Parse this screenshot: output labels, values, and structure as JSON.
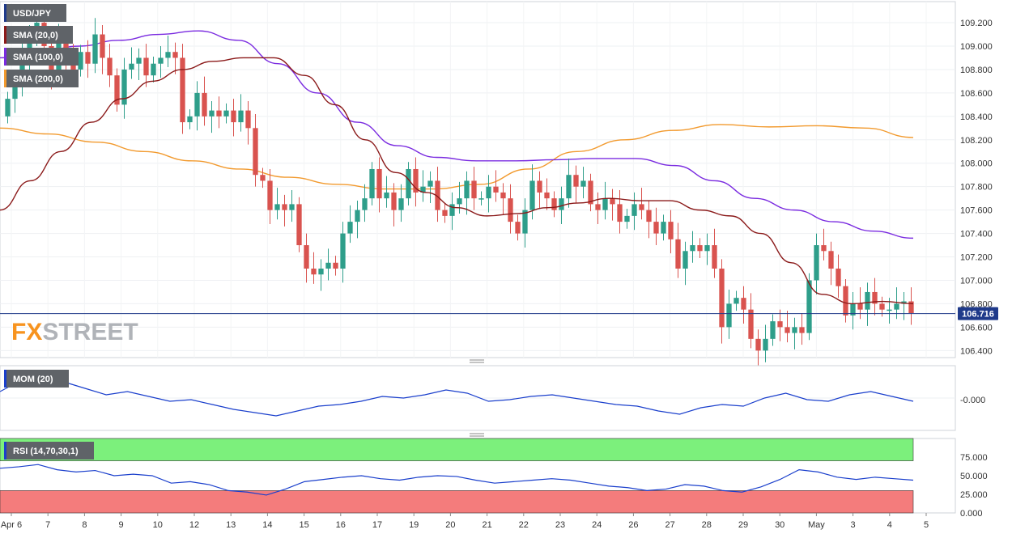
{
  "chart_data": [
    {
      "type": "candlestick",
      "symbol": "USD/JPY",
      "price_axis": {
        "ticks": [
          "106.400",
          "106.600",
          "106.800",
          "107.000",
          "107.200",
          "107.400",
          "107.600",
          "107.800",
          "108.000",
          "108.200",
          "108.400",
          "108.600",
          "108.800",
          "109.000",
          "109.200"
        ],
        "ylim": [
          106.34,
          109.38
        ]
      },
      "current_price": {
        "value": 106.716,
        "label": "106.716"
      },
      "x_axis": {
        "ticks": [
          "Apr 6",
          "7",
          "8",
          "9",
          "10",
          "12",
          "13",
          "14",
          "15",
          "16",
          "17",
          "19",
          "20",
          "21",
          "22",
          "23",
          "24",
          "26",
          "27",
          "28",
          "29",
          "30",
          "May",
          "3",
          "4",
          "5"
        ]
      },
      "indicators": [
        {
          "name": "SMA (20,0)",
          "color": "#8b1a1a"
        },
        {
          "name": "SMA (100,0)",
          "color": "#7a2be0"
        },
        {
          "name": "SMA (200,0)",
          "color": "#f29a2e"
        }
      ],
      "candles": [
        [
          108.4,
          108.55
        ],
        [
          108.55,
          108.65
        ],
        [
          108.65,
          108.9
        ],
        [
          108.9,
          109.1
        ],
        [
          109.1,
          109.2
        ],
        [
          109.2,
          109.0
        ],
        [
          109.0,
          108.75
        ],
        [
          108.75,
          109.05
        ],
        [
          109.05,
          108.9
        ],
        [
          108.9,
          108.8
        ],
        [
          108.8,
          108.95
        ],
        [
          108.95,
          108.85
        ],
        [
          108.85,
          109.1
        ],
        [
          109.1,
          108.9
        ],
        [
          108.9,
          108.75
        ],
        [
          108.75,
          108.5
        ],
        [
          108.5,
          108.8
        ],
        [
          108.8,
          108.85
        ],
        [
          108.85,
          108.9
        ],
        [
          108.9,
          108.75
        ],
        [
          108.75,
          108.85
        ],
        [
          108.85,
          108.9
        ],
        [
          108.9,
          108.95
        ],
        [
          108.95,
          108.9
        ],
        [
          108.9,
          108.35
        ],
        [
          108.35,
          108.4
        ],
        [
          108.4,
          108.6
        ],
        [
          108.6,
          108.4
        ],
        [
          108.4,
          108.45
        ],
        [
          108.45,
          108.4
        ],
        [
          108.4,
          108.45
        ],
        [
          108.45,
          108.35
        ],
        [
          108.35,
          108.45
        ],
        [
          108.45,
          108.3
        ],
        [
          108.3,
          107.9
        ],
        [
          107.9,
          107.85
        ],
        [
          107.85,
          107.6
        ],
        [
          107.6,
          107.65
        ],
        [
          107.65,
          107.6
        ],
        [
          107.6,
          107.65
        ],
        [
          107.65,
          107.3
        ],
        [
          107.3,
          107.1
        ],
        [
          107.1,
          107.05
        ],
        [
          107.05,
          107.1
        ],
        [
          107.1,
          107.15
        ],
        [
          107.15,
          107.1
        ],
        [
          107.1,
          107.4
        ],
        [
          107.4,
          107.5
        ],
        [
          107.5,
          107.6
        ],
        [
          107.6,
          107.7
        ],
        [
          107.7,
          107.95
        ],
        [
          107.95,
          107.7
        ],
        [
          107.7,
          107.75
        ],
        [
          107.75,
          107.6
        ],
        [
          107.6,
          107.7
        ],
        [
          107.7,
          107.95
        ],
        [
          107.95,
          107.75
        ],
        [
          107.75,
          107.8
        ],
        [
          107.8,
          107.85
        ],
        [
          107.85,
          107.6
        ],
        [
          107.6,
          107.55
        ],
        [
          107.55,
          107.65
        ],
        [
          107.65,
          107.7
        ],
        [
          107.7,
          107.85
        ],
        [
          107.85,
          107.7
        ],
        [
          107.7,
          107.7
        ],
        [
          107.7,
          107.8
        ],
        [
          107.8,
          107.75
        ],
        [
          107.75,
          107.7
        ],
        [
          107.7,
          107.5
        ],
        [
          107.5,
          107.4
        ],
        [
          107.4,
          107.6
        ],
        [
          107.6,
          107.85
        ],
        [
          107.85,
          107.75
        ],
        [
          107.75,
          107.7
        ],
        [
          107.7,
          107.6
        ],
        [
          107.6,
          107.7
        ],
        [
          107.7,
          107.9
        ],
        [
          107.9,
          107.8
        ],
        [
          107.8,
          107.85
        ],
        [
          107.85,
          107.65
        ],
        [
          107.65,
          107.6
        ],
        [
          107.6,
          107.7
        ],
        [
          107.7,
          107.65
        ],
        [
          107.65,
          107.5
        ],
        [
          107.5,
          107.55
        ],
        [
          107.55,
          107.65
        ],
        [
          107.65,
          107.6
        ],
        [
          107.6,
          107.5
        ],
        [
          107.5,
          107.4
        ],
        [
          107.4,
          107.5
        ],
        [
          107.5,
          107.35
        ],
        [
          107.35,
          107.1
        ],
        [
          107.1,
          107.25
        ],
        [
          107.25,
          107.3
        ],
        [
          107.3,
          107.25
        ],
        [
          107.25,
          107.3
        ],
        [
          107.3,
          107.1
        ],
        [
          107.1,
          106.6
        ],
        [
          106.6,
          106.8
        ],
        [
          106.8,
          106.85
        ],
        [
          106.85,
          106.75
        ],
        [
          106.75,
          106.5
        ],
        [
          106.5,
          106.4
        ],
        [
          106.4,
          106.5
        ],
        [
          106.5,
          106.65
        ],
        [
          106.65,
          106.6
        ],
        [
          106.6,
          106.55
        ],
        [
          106.55,
          106.6
        ],
        [
          106.6,
          106.55
        ],
        [
          106.55,
          107.0
        ],
        [
          107.0,
          107.3
        ],
        [
          107.3,
          107.25
        ],
        [
          107.25,
          107.1
        ],
        [
          107.1,
          106.95
        ],
        [
          106.95,
          106.7
        ],
        [
          106.7,
          106.8
        ],
        [
          106.8,
          106.75
        ],
        [
          106.75,
          106.9
        ],
        [
          106.9,
          106.8
        ],
        [
          106.8,
          106.75
        ],
        [
          106.75,
          106.75
        ],
        [
          106.75,
          106.8
        ],
        [
          106.8,
          106.82
        ],
        [
          106.82,
          106.72
        ]
      ],
      "sma20": [
        107.6,
        107.85,
        108.1,
        108.35,
        108.55,
        108.7,
        108.8,
        108.87,
        108.9,
        108.9,
        108.75,
        108.5,
        108.2,
        107.92,
        107.75,
        107.62,
        107.55,
        107.57,
        107.62,
        107.66,
        107.7,
        107.68,
        107.68,
        107.6,
        107.55,
        107.4,
        107.15,
        106.88,
        106.8,
        106.82,
        106.8
      ],
      "sma100": [
        108.9,
        108.95,
        109.0,
        109.05,
        109.1,
        109.13,
        109.05,
        108.85,
        108.6,
        108.35,
        108.15,
        108.05,
        108.02,
        108.02,
        108.03,
        108.04,
        108.04,
        107.98,
        107.85,
        107.7,
        107.6,
        107.5,
        107.42,
        107.36
      ],
      "sma200": [
        108.3,
        108.25,
        108.18,
        108.1,
        108.02,
        107.95,
        107.88,
        107.82,
        107.78,
        107.78,
        107.82,
        107.95,
        108.1,
        108.2,
        108.28,
        108.33,
        108.31,
        108.32,
        108.3,
        108.22
      ]
    },
    {
      "type": "line",
      "name": "MOM (20)",
      "y_tick": "-0.000",
      "values": [
        0.2,
        0.55,
        0.75,
        0.5,
        0.3,
        0.1,
        0.2,
        0.05,
        -0.1,
        -0.05,
        -0.2,
        -0.35,
        -0.45,
        -0.55,
        -0.4,
        -0.25,
        -0.2,
        -0.1,
        0.05,
        0.0,
        0.1,
        0.25,
        0.15,
        -0.1,
        -0.05,
        0.05,
        0.1,
        0.0,
        -0.1,
        -0.2,
        -0.25,
        -0.4,
        -0.5,
        -0.3,
        -0.2,
        -0.25,
        0.0,
        0.15,
        -0.05,
        -0.1,
        0.1,
        0.2,
        0.05,
        -0.1
      ]
    },
    {
      "type": "line",
      "name": "RSI (14,70,30,1)",
      "y_ticks": [
        "0.000",
        "25.000",
        "50.000",
        "75.000"
      ],
      "ylim": [
        0,
        100
      ],
      "overbought": 70,
      "oversold": 30,
      "values": [
        60,
        62,
        65,
        58,
        55,
        57,
        50,
        52,
        50,
        40,
        42,
        38,
        30,
        28,
        24,
        32,
        42,
        45,
        48,
        50,
        46,
        44,
        48,
        50,
        49,
        44,
        40,
        42,
        44,
        46,
        44,
        40,
        36,
        34,
        30,
        32,
        38,
        36,
        30,
        28,
        35,
        45,
        58,
        55,
        48,
        45,
        48,
        46,
        44
      ]
    }
  ],
  "watermark": {
    "part1": "FX",
    "part2": "STREET"
  }
}
